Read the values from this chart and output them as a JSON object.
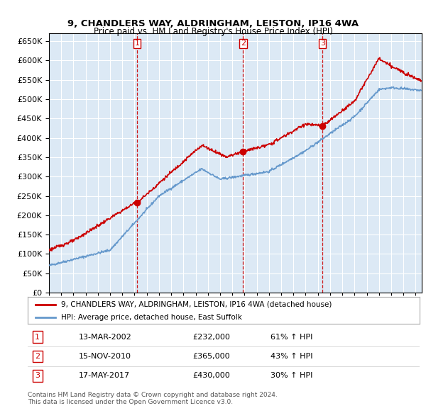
{
  "title_line1": "9, CHANDLERS WAY, ALDRINGHAM, LEISTON, IP16 4WA",
  "title_line2": "Price paid vs. HM Land Registry's House Price Index (HPI)",
  "bg_color": "#dce9f5",
  "red_line_color": "#cc0000",
  "blue_line_color": "#6699cc",
  "vline_color": "#cc0000",
  "grid_color": "#ffffff",
  "ylim": [
    0,
    670000
  ],
  "yticks": [
    0,
    50000,
    100000,
    150000,
    200000,
    250000,
    300000,
    350000,
    400000,
    450000,
    500000,
    550000,
    600000,
    650000
  ],
  "xlim_start": 1995.0,
  "xlim_end": 2025.5,
  "sale1": {
    "date_num": 2002.2,
    "price": 232000,
    "label": "1",
    "date_str": "13-MAR-2002",
    "pct": "61%"
  },
  "sale2": {
    "date_num": 2010.88,
    "price": 365000,
    "label": "2",
    "date_str": "15-NOV-2010",
    "pct": "43%"
  },
  "sale3": {
    "date_num": 2017.38,
    "price": 430000,
    "label": "3",
    "date_str": "17-MAY-2017",
    "pct": "30%"
  },
  "legend_label_red": "9, CHANDLERS WAY, ALDRINGHAM, LEISTON, IP16 4WA (detached house)",
  "legend_label_blue": "HPI: Average price, detached house, East Suffolk",
  "footer1": "Contains HM Land Registry data © Crown copyright and database right 2024.",
  "footer2": "This data is licensed under the Open Government Licence v3.0."
}
